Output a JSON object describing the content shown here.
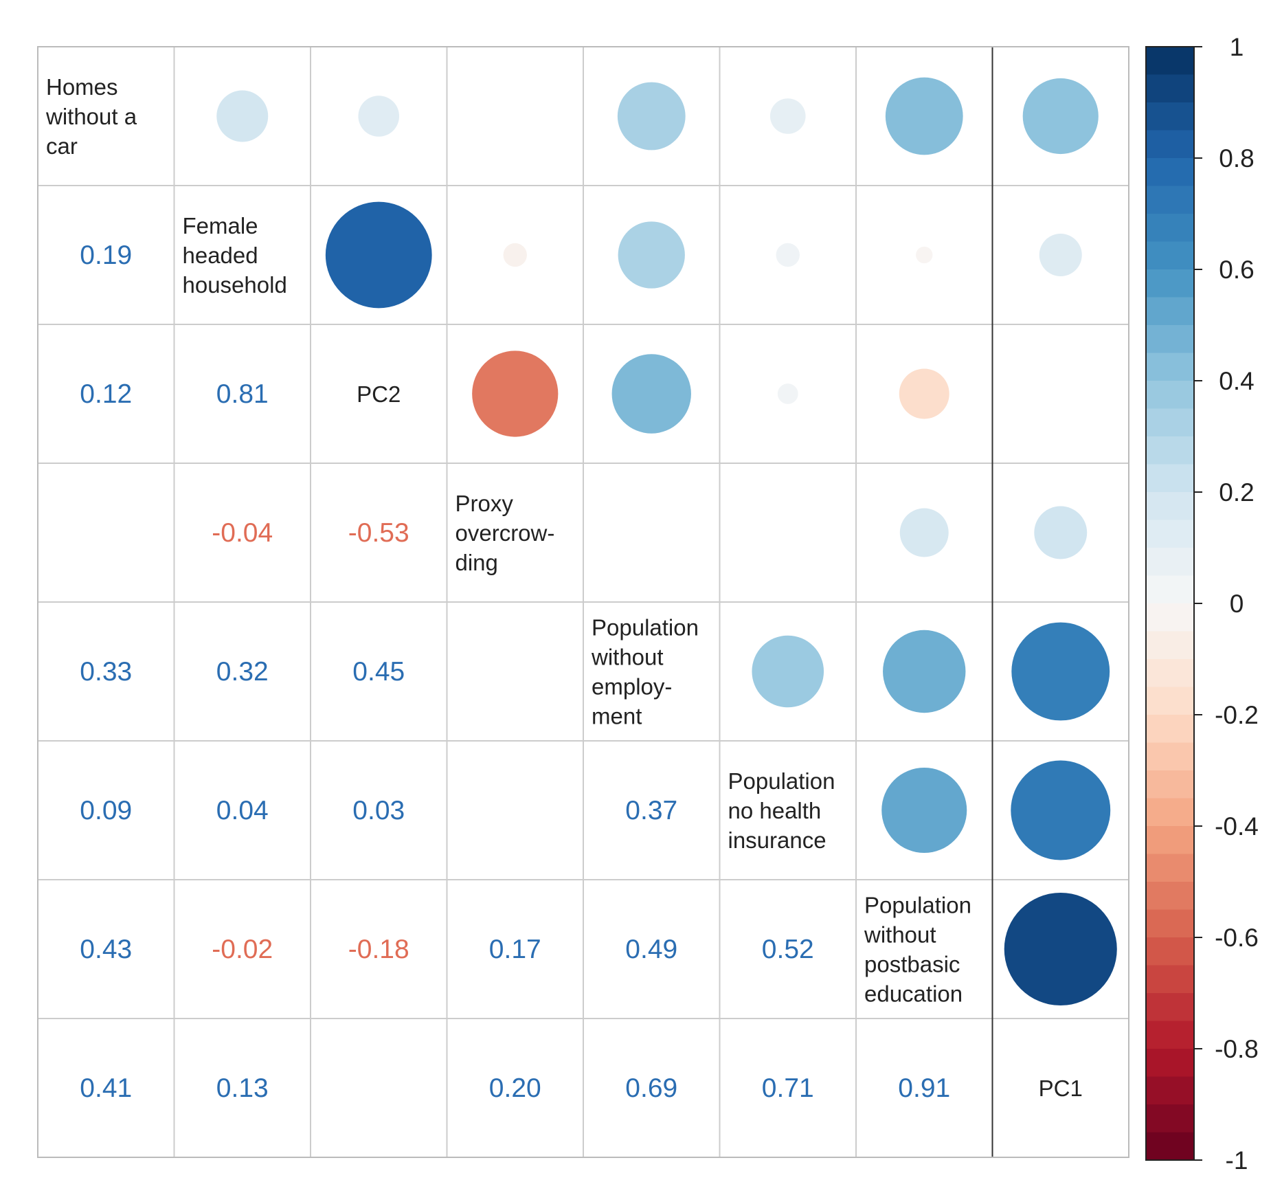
{
  "chart_data": {
    "type": "heatmap",
    "title": "",
    "variables": [
      "Homes without a car",
      "Female headed household",
      "PC2",
      "Proxy overcrowding",
      "Population without employment",
      "Population no health insurance",
      "Population without postbasic education",
      "PC1"
    ],
    "diagonal_labels": [
      [
        "Homes",
        "without a",
        "car"
      ],
      [
        "Female",
        "headed",
        "household"
      ],
      [
        "PC2"
      ],
      [
        "Proxy",
        "overcrow-",
        "ding"
      ],
      [
        "Population",
        "without",
        "employ-",
        "ment"
      ],
      [
        "Population",
        "no health",
        "insurance"
      ],
      [
        "Population",
        "without",
        "postbasic",
        "education"
      ],
      [
        "PC1"
      ]
    ],
    "matrix": [
      [
        1.0,
        0.19,
        0.12,
        0.0,
        0.33,
        0.09,
        0.43,
        0.41
      ],
      [
        0.19,
        1.0,
        0.81,
        -0.04,
        0.32,
        0.04,
        -0.02,
        0.13
      ],
      [
        0.12,
        0.81,
        1.0,
        -0.53,
        0.45,
        0.03,
        -0.18,
        0.0
      ],
      [
        0.0,
        -0.04,
        -0.53,
        1.0,
        0.0,
        0.0,
        0.17,
        0.2
      ],
      [
        0.33,
        0.32,
        0.45,
        0.0,
        1.0,
        0.37,
        0.49,
        0.69
      ],
      [
        0.09,
        0.04,
        0.03,
        0.0,
        0.37,
        1.0,
        0.52,
        0.71
      ],
      [
        0.43,
        -0.02,
        -0.18,
        0.17,
        0.49,
        0.52,
        1.0,
        0.91
      ],
      [
        0.41,
        0.13,
        0.0,
        0.2,
        0.69,
        0.71,
        0.91,
        1.0
      ]
    ],
    "lower_labels": [
      [
        null,
        null,
        null,
        null,
        null,
        null,
        null,
        null
      ],
      [
        "0.19",
        null,
        null,
        null,
        null,
        null,
        null,
        null
      ],
      [
        "0.12",
        "0.81",
        null,
        null,
        null,
        null,
        null,
        null
      ],
      [
        null,
        "-0.04",
        "-0.53",
        null,
        null,
        null,
        null,
        null
      ],
      [
        "0.33",
        "0.32",
        "0.45",
        null,
        null,
        null,
        null,
        null
      ],
      [
        "0.09",
        "0.04",
        "0.03",
        null,
        "0.37",
        null,
        null,
        null
      ],
      [
        "0.43",
        "-0.02",
        "-0.18",
        "0.17",
        "0.49",
        "0.52",
        null,
        null
      ],
      [
        "0.41",
        "0.13",
        null,
        "0.20",
        "0.69",
        "0.71",
        "0.91",
        null
      ]
    ],
    "upper_display": "circle",
    "lower_display": "number",
    "highlighted_variable": "PC1",
    "colorbar": {
      "range": [
        -1,
        1
      ],
      "ticks": [
        "1",
        "0.8",
        "0.6",
        "0.4",
        "0.2",
        "0",
        "-0.2",
        "-0.4",
        "-0.6",
        "-0.8",
        "-1"
      ],
      "tick_values": [
        1,
        0.8,
        0.6,
        0.4,
        0.2,
        0,
        -0.2,
        -0.4,
        -0.6,
        -0.8,
        -1
      ],
      "palette": [
        "#67001f",
        "#b2182b",
        "#d6604d",
        "#f4a582",
        "#fddbc7",
        "#f7f7f7",
        "#d1e5f0",
        "#92c5de",
        "#4393c3",
        "#2166ac",
        "#053061"
      ]
    },
    "grid_color": "#cccccc",
    "legend_position": "right"
  }
}
